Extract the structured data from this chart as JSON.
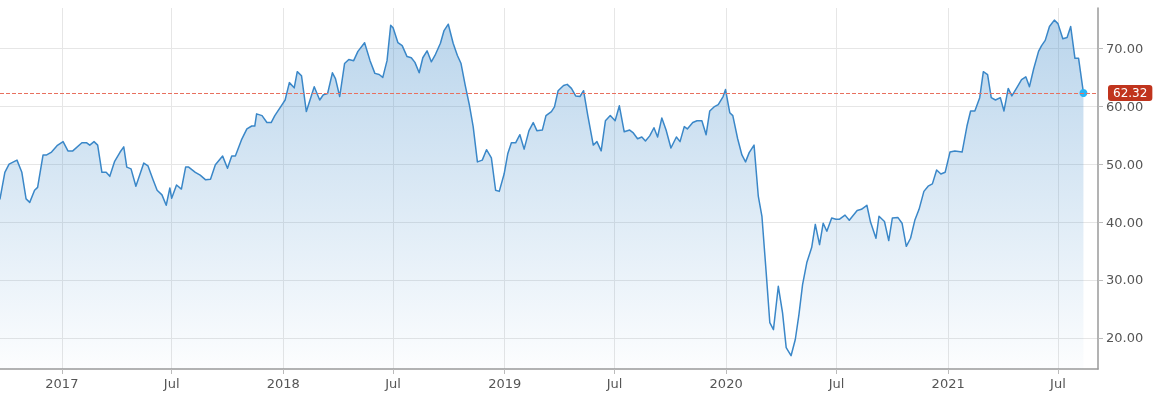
{
  "chart_data": {
    "type": "area",
    "x": [
      "2016-09-21",
      "2016-09-29",
      "2016-10-06",
      "2016-10-19",
      "2016-10-27",
      "2016-11-03",
      "2016-11-09",
      "2016-11-17",
      "2016-11-22",
      "2016-12-01",
      "2016-12-07",
      "2016-12-15",
      "2016-12-24",
      "2017-01-03",
      "2017-01-11",
      "2017-01-19",
      "2017-02-03",
      "2017-02-11",
      "2017-02-16",
      "2017-02-23",
      "2017-03-01",
      "2017-03-08",
      "2017-03-15",
      "2017-03-21",
      "2017-03-29",
      "2017-04-07",
      "2017-04-13",
      "2017-04-18",
      "2017-04-25",
      "2017-05-03",
      "2017-05-16",
      "2017-05-23",
      "2017-05-31",
      "2017-06-07",
      "2017-06-15",
      "2017-06-22",
      "2017-06-28",
      "2017-07-01",
      "2017-07-09",
      "2017-07-17",
      "2017-07-24",
      "2017-07-29",
      "2017-08-09",
      "2017-08-17",
      "2017-08-26",
      "2017-09-03",
      "2017-09-11",
      "2017-09-23",
      "2017-10-01",
      "2017-10-08",
      "2017-10-14",
      "2017-10-24",
      "2017-11-02",
      "2017-11-10",
      "2017-11-15",
      "2017-11-18",
      "2017-11-27",
      "2017-12-05",
      "2017-12-12",
      "2017-12-18",
      "2017-12-30",
      "2018-01-04",
      "2018-01-11",
      "2018-01-19",
      "2018-01-24",
      "2018-01-31",
      "2018-02-08",
      "2018-02-21",
      "2018-03-02",
      "2018-03-08",
      "2018-03-15",
      "2018-03-23",
      "2018-03-28",
      "2018-04-04",
      "2018-04-12",
      "2018-04-19",
      "2018-04-27",
      "2018-05-04",
      "2018-05-15",
      "2018-05-24",
      "2018-06-01",
      "2018-06-08",
      "2018-06-14",
      "2018-06-21",
      "2018-06-27",
      "2018-07-01",
      "2018-07-09",
      "2018-07-16",
      "2018-07-24",
      "2018-07-31",
      "2018-08-06",
      "2018-08-13",
      "2018-08-19",
      "2018-08-26",
      "2018-09-02",
      "2018-09-08",
      "2018-09-17",
      "2018-09-23",
      "2018-09-30",
      "2018-10-08",
      "2018-10-15",
      "2018-10-21",
      "2018-10-28",
      "2018-11-04",
      "2018-11-10",
      "2018-11-17",
      "2018-11-25",
      "2018-12-02",
      "2018-12-10",
      "2018-12-17",
      "2018-12-23",
      "2018-12-31",
      "2019-01-06",
      "2019-01-12",
      "2019-01-19",
      "2019-01-26",
      "2019-02-02",
      "2019-02-10",
      "2019-02-17",
      "2019-02-23",
      "2019-03-04",
      "2019-03-10",
      "2019-03-19",
      "2019-03-24",
      "2019-03-30",
      "2019-04-08",
      "2019-04-14",
      "2019-04-21",
      "2019-04-28",
      "2019-05-05",
      "2019-05-11",
      "2019-05-18",
      "2019-05-27",
      "2019-06-02",
      "2019-06-09",
      "2019-06-16",
      "2019-06-24",
      "2019-07-02",
      "2019-07-09",
      "2019-07-17",
      "2019-07-26",
      "2019-08-01",
      "2019-08-08",
      "2019-08-15",
      "2019-08-21",
      "2019-08-28",
      "2019-09-04",
      "2019-09-10",
      "2019-09-17",
      "2019-09-24",
      "2019-10-02",
      "2019-10-11",
      "2019-10-17",
      "2019-10-24",
      "2019-10-29",
      "2019-11-07",
      "2019-11-14",
      "2019-11-22",
      "2019-11-29",
      "2019-12-05",
      "2019-12-12",
      "2019-12-19",
      "2019-12-27",
      "2019-12-31",
      "2020-01-07",
      "2020-01-12",
      "2020-01-20",
      "2020-01-27",
      "2020-02-02",
      "2020-02-08",
      "2020-02-16",
      "2020-02-23",
      "2020-02-29",
      "2020-03-07",
      "2020-03-13",
      "2020-03-19",
      "2020-03-27",
      "2020-04-03",
      "2020-04-09",
      "2020-04-17",
      "2020-04-24",
      "2020-04-30",
      "2020-05-06",
      "2020-05-13",
      "2020-05-21",
      "2020-05-27",
      "2020-06-03",
      "2020-06-09",
      "2020-06-15",
      "2020-06-23",
      "2020-06-30",
      "2020-07-06",
      "2020-07-15",
      "2020-07-22",
      "2020-08-04",
      "2020-08-11",
      "2020-08-20",
      "2020-08-26",
      "2020-09-04",
      "2020-09-09",
      "2020-09-18",
      "2020-09-25",
      "2020-10-01",
      "2020-10-10",
      "2020-10-17",
      "2020-10-24",
      "2020-10-31",
      "2020-11-07",
      "2020-11-14",
      "2020-11-22",
      "2020-11-29",
      "2020-12-06",
      "2020-12-13",
      "2020-12-20",
      "2020-12-27",
      "2021-01-04",
      "2021-01-12",
      "2021-01-24",
      "2021-02-01",
      "2021-02-07",
      "2021-02-14",
      "2021-02-22",
      "2021-02-28",
      "2021-03-07",
      "2021-03-13",
      "2021-03-20",
      "2021-03-28",
      "2021-04-03",
      "2021-04-10",
      "2021-04-16",
      "2021-04-24",
      "2021-05-02",
      "2021-05-09",
      "2021-05-15",
      "2021-05-22",
      "2021-05-30",
      "2021-06-04",
      "2021-06-10",
      "2021-06-17",
      "2021-06-25",
      "2021-07-01",
      "2021-07-09",
      "2021-07-16",
      "2021-07-22",
      "2021-07-29",
      "2021-08-04",
      "2021-08-12"
    ],
    "series": [
      {
        "color": "#3a87c8",
        "values": [
          44.0,
          48.6,
          50.0,
          50.7,
          48.6,
          44.0,
          43.4,
          45.5,
          46.0,
          51.6,
          51.6,
          52.1,
          53.2,
          53.9,
          52.3,
          52.3,
          53.7,
          53.7,
          53.3,
          53.9,
          53.3,
          48.6,
          48.6,
          47.9,
          50.5,
          52.1,
          53.0,
          49.5,
          49.2,
          46.2,
          50.2,
          49.7,
          47.4,
          45.5,
          44.7,
          42.9,
          45.9,
          44.1,
          46.4,
          45.7,
          49.5,
          49.5,
          48.6,
          48.1,
          47.3,
          47.4,
          49.9,
          51.4,
          49.3,
          51.4,
          51.4,
          54.2,
          56.1,
          56.6,
          56.6,
          58.7,
          58.4,
          57.2,
          57.2,
          58.4,
          60.3,
          61.1,
          64.1,
          63.2,
          66.0,
          65.3,
          59.1,
          63.4,
          61.1,
          62.0,
          62.2,
          65.8,
          64.8,
          61.7,
          67.4,
          68.1,
          67.9,
          69.5,
          71.0,
          67.9,
          65.7,
          65.5,
          65.0,
          67.9,
          74.0,
          73.6,
          71.0,
          70.5,
          68.6,
          68.4,
          67.6,
          65.8,
          68.4,
          69.6,
          67.7,
          68.8,
          70.9,
          73.1,
          74.2,
          70.9,
          68.8,
          67.4,
          63.6,
          60.1,
          56.5,
          50.4,
          50.7,
          52.5,
          51.1,
          45.5,
          45.3,
          48.3,
          51.8,
          53.7,
          53.7,
          55.1,
          52.6,
          55.8,
          57.2,
          55.8,
          55.9,
          58.4,
          59.1,
          59.9,
          62.7,
          63.6,
          63.8,
          63.1,
          61.8,
          61.7,
          62.7,
          58.4,
          53.3,
          53.9,
          52.3,
          57.5,
          58.4,
          57.5,
          60.1,
          55.6,
          55.9,
          55.4,
          54.4,
          54.7,
          54.0,
          54.9,
          56.3,
          54.7,
          58.0,
          55.9,
          52.8,
          54.7,
          53.9,
          56.5,
          56.1,
          57.2,
          57.5,
          57.5,
          55.1,
          59.2,
          59.9,
          60.3,
          61.7,
          62.9,
          58.9,
          58.4,
          54.4,
          51.6,
          50.4,
          52.0,
          53.3,
          44.5,
          41.0,
          31.3,
          22.6,
          21.4,
          28.9,
          24.3,
          18.3,
          16.9,
          19.7,
          24.0,
          29.2,
          33.0,
          35.6,
          39.6,
          36.1,
          39.8,
          38.4,
          40.7,
          40.5,
          40.5,
          41.2,
          40.3,
          42.0,
          42.2,
          42.9,
          40.0,
          37.2,
          41.0,
          40.1,
          36.8,
          40.7,
          40.8,
          39.8,
          35.8,
          37.2,
          40.3,
          42.2,
          45.3,
          46.2,
          46.6,
          49.0,
          48.3,
          48.6,
          52.1,
          52.3,
          52.1,
          56.6,
          59.2,
          59.2,
          61.5,
          66.0,
          65.5,
          61.5,
          61.1,
          61.5,
          59.2,
          63.1,
          61.8,
          63.2,
          64.6,
          65.1,
          63.4,
          66.5,
          69.5,
          70.5,
          71.4,
          73.8,
          74.9,
          74.3,
          71.7,
          71.9,
          73.8,
          68.3,
          68.3,
          62.32
        ]
      }
    ],
    "xlim": [
      "2016-09-21",
      "2021-09-05"
    ],
    "xticks": [
      {
        "value": "2017-01-01",
        "label": "2017"
      },
      {
        "value": "2017-07-01",
        "label": "Jul"
      },
      {
        "value": "2018-01-01",
        "label": "2018"
      },
      {
        "value": "2018-07-01",
        "label": "Jul"
      },
      {
        "value": "2019-01-01",
        "label": "2019"
      },
      {
        "value": "2019-07-01",
        "label": "Jul"
      },
      {
        "value": "2020-01-01",
        "label": "2020"
      },
      {
        "value": "2020-07-01",
        "label": "Jul"
      },
      {
        "value": "2021-01-01",
        "label": "2021"
      },
      {
        "value": "2021-07-01",
        "label": "Jul"
      }
    ],
    "ylim": [
      14.6,
      77
    ],
    "yticks": [
      {
        "value": 20,
        "label": "20.00"
      },
      {
        "value": 30,
        "label": "30.00"
      },
      {
        "value": 40,
        "label": "40.00"
      },
      {
        "value": 50,
        "label": "50.00"
      },
      {
        "value": 60,
        "label": "60.00"
      },
      {
        "value": 70,
        "label": "70.00"
      }
    ],
    "ref_lines": [
      {
        "axis": "y",
        "value": 62.32,
        "label": "62.32",
        "color": "#e8705f",
        "line_style": "dashed"
      }
    ],
    "grid": true,
    "marker": "none",
    "line_style": "solid"
  }
}
